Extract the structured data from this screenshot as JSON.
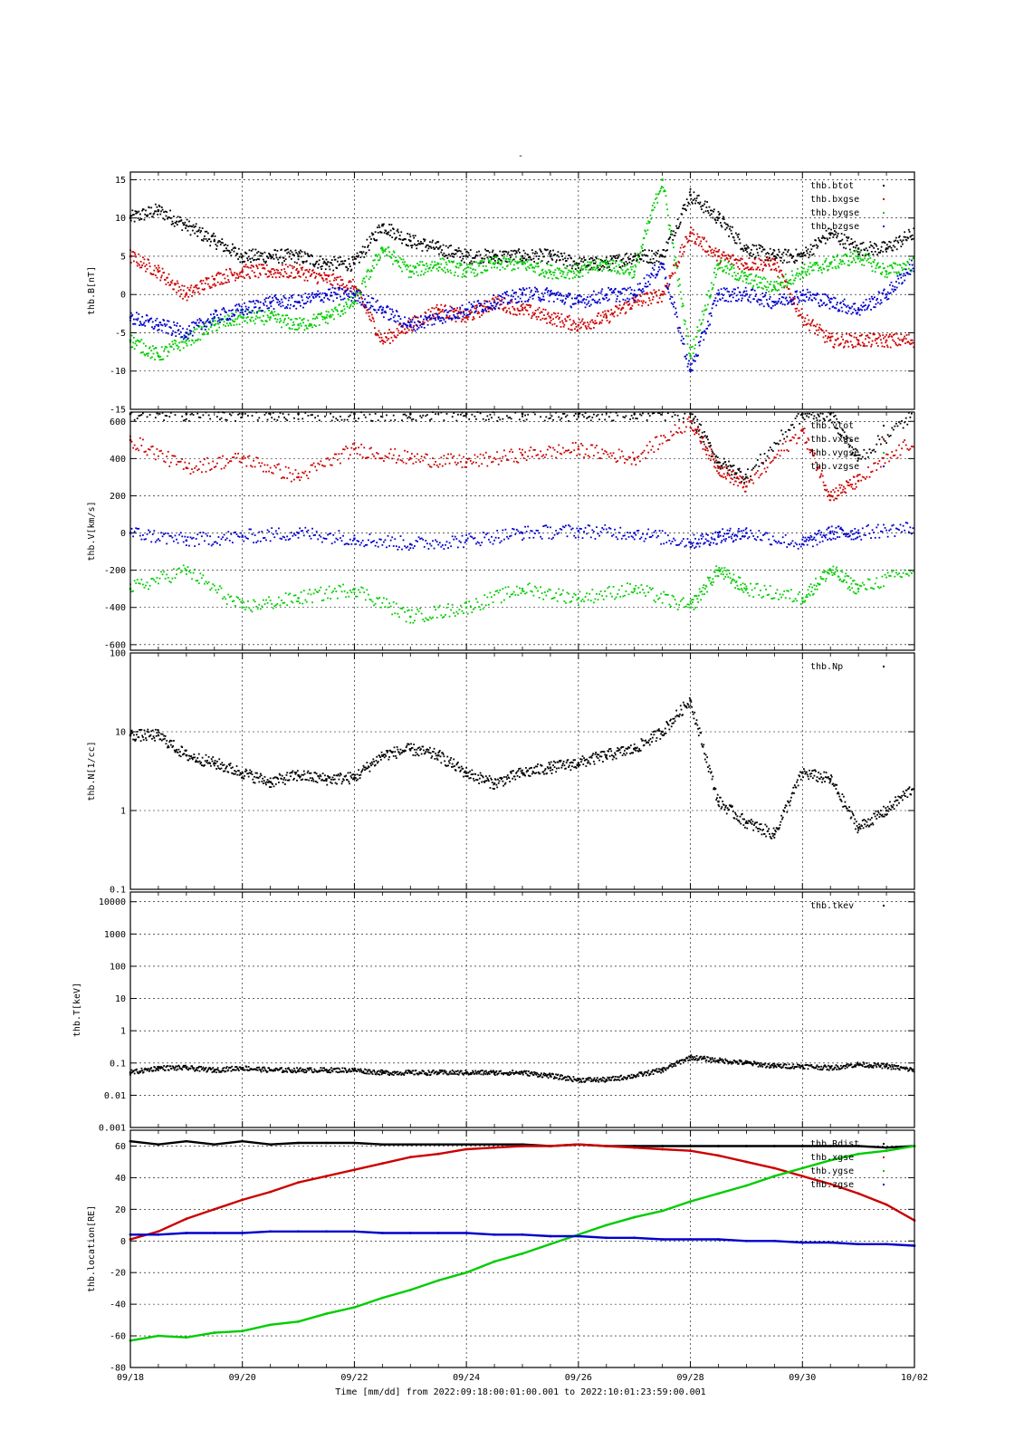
{
  "title": "-",
  "footer": "Time [mm/dd]  from 2022:09:18:00:01:00.001  to  2022:10:01:23:59:00.001",
  "colors": {
    "black": "#000000",
    "red": "#cc0000",
    "green": "#00cc00",
    "blue": "#0000cc"
  },
  "x_axis": {
    "range": [
      "09/18",
      "10/02"
    ],
    "tick_labels": [
      "09/18",
      "09/20",
      "09/22",
      "09/24",
      "09/26",
      "09/28",
      "09/30",
      "10/02"
    ],
    "xlabel": "Time [mm/dd]"
  },
  "chart_data": [
    {
      "type": "scatter",
      "ylabel": "thb.B[nT]",
      "yscale": "linear",
      "ylim": [
        -15,
        16
      ],
      "yticks": [
        -15,
        -10,
        -5,
        0,
        5,
        10,
        15
      ],
      "ytick_labels": [
        "-15",
        "-10",
        "-5",
        "0",
        "5",
        "10",
        "15"
      ],
      "grid": true,
      "legend": "top-right",
      "series": [
        {
          "name": "thb.btot",
          "color": "black",
          "x": [
            0,
            0.5,
            1,
            1.5,
            2,
            2.5,
            3,
            3.5,
            4,
            4.5,
            5,
            5.5,
            6,
            6.5,
            7,
            7.5,
            8,
            8.5,
            9,
            9.5,
            10,
            10.5,
            11,
            11.5,
            12,
            12.5,
            13,
            13.5,
            14
          ],
          "y": [
            10,
            11,
            9,
            7,
            5,
            5,
            5,
            4,
            4,
            9,
            7,
            6,
            5,
            5,
            5,
            5,
            4,
            4,
            5,
            5,
            13,
            10,
            6,
            5,
            5,
            8,
            6,
            6,
            8
          ]
        },
        {
          "name": "thb.bxgse",
          "color": "red",
          "x": [
            0,
            0.5,
            1,
            1.5,
            2,
            2.5,
            3,
            3.5,
            4,
            4.5,
            5,
            5.5,
            6,
            6.5,
            7,
            7.5,
            8,
            8.5,
            9,
            9.5,
            10,
            10.5,
            11,
            11.5,
            12,
            12.5,
            13,
            13.5,
            14
          ],
          "y": [
            5,
            3,
            0,
            2,
            3,
            3,
            3,
            2,
            1,
            -6,
            -4,
            -2,
            -3,
            -1,
            -2,
            -3,
            -4,
            -3,
            -1,
            0,
            8,
            5,
            4,
            4,
            -3,
            -6,
            -6,
            -6,
            -6
          ]
        },
        {
          "name": "thb.bygse",
          "color": "green",
          "x": [
            0,
            0.5,
            1,
            1.5,
            2,
            2.5,
            3,
            3.5,
            4,
            4.5,
            5,
            5.5,
            6,
            6.5,
            7,
            7.5,
            8,
            8.5,
            9,
            9.5,
            10,
            10.5,
            11,
            11.5,
            12,
            12.5,
            13,
            13.5,
            14
          ],
          "y": [
            -6,
            -8,
            -6,
            -4,
            -3,
            -3,
            -4,
            -3,
            -1,
            6,
            3,
            4,
            3,
            4,
            4,
            3,
            3,
            4,
            3,
            15,
            -8,
            4,
            2,
            1,
            3,
            4,
            5,
            3,
            4
          ]
        },
        {
          "name": "thb.bzgse",
          "color": "blue",
          "x": [
            0,
            0.5,
            1,
            1.5,
            2,
            2.5,
            3,
            3.5,
            4,
            4.5,
            5,
            5.5,
            6,
            6.5,
            7,
            7.5,
            8,
            8.5,
            9,
            9.5,
            10,
            10.5,
            11,
            11.5,
            12,
            12.5,
            13,
            13.5,
            14
          ],
          "y": [
            -3,
            -4,
            -5,
            -3,
            -2,
            -1,
            -1,
            0,
            0,
            -2,
            -4,
            -3,
            -2,
            -1,
            0,
            0,
            -1,
            0,
            0,
            4,
            -10,
            0,
            0,
            -1,
            0,
            -1,
            -2,
            0,
            4
          ]
        }
      ]
    },
    {
      "type": "scatter",
      "ylabel": "thb.V[km/s]",
      "yscale": "linear",
      "ylim": [
        -630,
        650
      ],
      "yticks": [
        -600,
        -400,
        -200,
        0,
        200,
        400,
        600
      ],
      "ytick_labels": [
        "-600",
        "-400",
        "-200",
        "0",
        "200",
        "400",
        "600"
      ],
      "grid": true,
      "legend": "top-right",
      "series": [
        {
          "name": "thb.vtot",
          "color": "black",
          "x": [
            0,
            1,
            2,
            3,
            4,
            5,
            6,
            7,
            8,
            9,
            10,
            10.5,
            11,
            12,
            12.5,
            13,
            14
          ],
          "y": [
            640,
            640,
            640,
            640,
            640,
            640,
            640,
            640,
            640,
            640,
            640,
            380,
            300,
            640,
            640,
            400,
            640
          ]
        },
        {
          "name": "thb.vxgse",
          "color": "red",
          "x": [
            0,
            1,
            2,
            3,
            4,
            5,
            6,
            7,
            8,
            9,
            10,
            10.5,
            11,
            12,
            12.5,
            13,
            14
          ],
          "y": [
            500,
            350,
            400,
            300,
            450,
            400,
            380,
            420,
            450,
            400,
            600,
            350,
            250,
            550,
            200,
            280,
            500
          ]
        },
        {
          "name": "thb.vygse",
          "color": "green",
          "x": [
            0,
            1,
            2,
            3,
            4,
            5,
            6,
            7,
            8,
            9,
            10,
            10.5,
            11,
            12,
            12.5,
            13,
            14
          ],
          "y": [
            -300,
            -200,
            -400,
            -350,
            -300,
            -450,
            -400,
            -300,
            -350,
            -300,
            -400,
            -200,
            -300,
            -350,
            -200,
            -300,
            -200
          ]
        },
        {
          "name": "thb.vzgse",
          "color": "blue",
          "x": [
            0,
            1,
            2,
            3,
            4,
            5,
            6,
            7,
            8,
            9,
            10,
            10.5,
            11,
            12,
            12.5,
            13,
            14
          ],
          "y": [
            0,
            -40,
            -20,
            0,
            -30,
            -60,
            -40,
            0,
            10,
            0,
            -50,
            -20,
            0,
            -60,
            0,
            0,
            30
          ]
        }
      ]
    },
    {
      "type": "scatter",
      "ylabel": "thb.N[1/cc]",
      "yscale": "log",
      "ylim": [
        0.1,
        100
      ],
      "yticks": [
        0.1,
        1,
        10,
        100
      ],
      "ytick_labels": [
        "0.1",
        "1",
        "10",
        "100"
      ],
      "grid": true,
      "legend": "top-right",
      "series": [
        {
          "name": "thb.Np",
          "color": "black",
          "x": [
            0,
            0.5,
            1,
            1.5,
            2,
            2.5,
            3,
            3.5,
            4,
            4.5,
            5,
            5.5,
            6,
            6.5,
            7,
            7.5,
            8,
            8.5,
            9,
            9.5,
            10,
            10.5,
            11,
            11.5,
            12,
            12.5,
            13,
            13.5,
            14
          ],
          "y": [
            9,
            9,
            5,
            4,
            3,
            2.3,
            2.8,
            2.5,
            2.6,
            5,
            6,
            5,
            3,
            2.2,
            3,
            3.5,
            4,
            5,
            6,
            10,
            25,
            1.3,
            0.7,
            0.5,
            3,
            2.5,
            0.6,
            1,
            2
          ]
        }
      ]
    },
    {
      "type": "scatter",
      "ylabel": "thb.T[keV]",
      "yscale": "log",
      "ylim": [
        0.001,
        20000
      ],
      "yticks": [
        0.001,
        0.01,
        0.1,
        1,
        10,
        100,
        1000,
        10000
      ],
      "ytick_labels": [
        "0.001",
        "0.01",
        "0.1",
        "1",
        "10",
        "100",
        "1000",
        "10000"
      ],
      "grid": true,
      "legend": "top-right",
      "series": [
        {
          "name": "thb.tkev",
          "color": "black",
          "x": [
            0,
            0.5,
            1,
            1.5,
            2,
            2.5,
            3,
            3.5,
            4,
            4.5,
            5,
            5.5,
            6,
            6.5,
            7,
            7.5,
            8,
            8.5,
            9,
            9.5,
            10,
            10.5,
            11,
            11.5,
            12,
            12.5,
            13,
            13.5,
            14
          ],
          "y": [
            0.05,
            0.07,
            0.07,
            0.06,
            0.07,
            0.06,
            0.06,
            0.06,
            0.06,
            0.05,
            0.05,
            0.05,
            0.05,
            0.05,
            0.05,
            0.04,
            0.03,
            0.03,
            0.04,
            0.06,
            0.15,
            0.12,
            0.1,
            0.08,
            0.08,
            0.07,
            0.09,
            0.08,
            0.06
          ]
        }
      ]
    },
    {
      "type": "line",
      "ylabel": "thb.location[RE]",
      "yscale": "linear",
      "ylim": [
        -80,
        70
      ],
      "yticks": [
        -80,
        -60,
        -40,
        -20,
        0,
        20,
        40,
        60
      ],
      "ytick_labels": [
        "-80",
        "-60",
        "-40",
        "-20",
        "0",
        "20",
        "40",
        "60"
      ],
      "grid": true,
      "legend": "top-right",
      "series": [
        {
          "name": "thb.Rdist",
          "color": "black",
          "x": [
            0,
            0.5,
            1,
            1.5,
            2,
            2.5,
            3,
            3.5,
            4,
            4.5,
            5,
            5.5,
            6,
            6.5,
            7,
            7.5,
            8,
            8.5,
            9,
            9.5,
            10,
            10.5,
            11,
            11.5,
            12,
            12.5,
            13,
            13.5,
            14
          ],
          "y": [
            63,
            61,
            63,
            61,
            63,
            61,
            62,
            62,
            62,
            61,
            61,
            61,
            61,
            61,
            61,
            60,
            61,
            60,
            60,
            60,
            60,
            60,
            60,
            60,
            60,
            60,
            60,
            59,
            60
          ]
        },
        {
          "name": "thb.xgse",
          "color": "red",
          "x": [
            0,
            0.5,
            1,
            1.5,
            2,
            2.5,
            3,
            3.5,
            4,
            4.5,
            5,
            5.5,
            6,
            6.5,
            7,
            7.5,
            8,
            8.5,
            9,
            9.5,
            10,
            10.5,
            11,
            11.5,
            12,
            12.5,
            13,
            13.5,
            14
          ],
          "y": [
            1,
            6,
            14,
            20,
            26,
            31,
            37,
            41,
            45,
            49,
            53,
            55,
            58,
            59,
            60,
            60,
            61,
            60,
            59,
            58,
            57,
            54,
            50,
            46,
            41,
            36,
            30,
            23,
            13
          ]
        },
        {
          "name": "thb.ygse",
          "color": "green",
          "x": [
            0,
            0.5,
            1,
            1.5,
            2,
            2.5,
            3,
            3.5,
            4,
            4.5,
            5,
            5.5,
            6,
            6.5,
            7,
            7.5,
            8,
            8.5,
            9,
            9.5,
            10,
            10.5,
            11,
            11.5,
            12,
            12.5,
            13,
            13.5,
            14
          ],
          "y": [
            -63,
            -60,
            -61,
            -58,
            -57,
            -53,
            -51,
            -46,
            -42,
            -36,
            -31,
            -25,
            -20,
            -13,
            -8,
            -2,
            4,
            10,
            15,
            19,
            25,
            30,
            35,
            41,
            46,
            51,
            55,
            57,
            60
          ]
        },
        {
          "name": "thb.zgse",
          "color": "blue",
          "x": [
            0,
            0.5,
            1,
            1.5,
            2,
            2.5,
            3,
            3.5,
            4,
            4.5,
            5,
            5.5,
            6,
            6.5,
            7,
            7.5,
            8,
            8.5,
            9,
            9.5,
            10,
            10.5,
            11,
            11.5,
            12,
            12.5,
            13,
            13.5,
            14
          ],
          "y": [
            4,
            4,
            5,
            5,
            5,
            6,
            6,
            6,
            6,
            5,
            5,
            5,
            5,
            4,
            4,
            3,
            3,
            2,
            2,
            1,
            1,
            1,
            0,
            0,
            -1,
            -1,
            -2,
            -2,
            -3
          ]
        }
      ]
    }
  ]
}
